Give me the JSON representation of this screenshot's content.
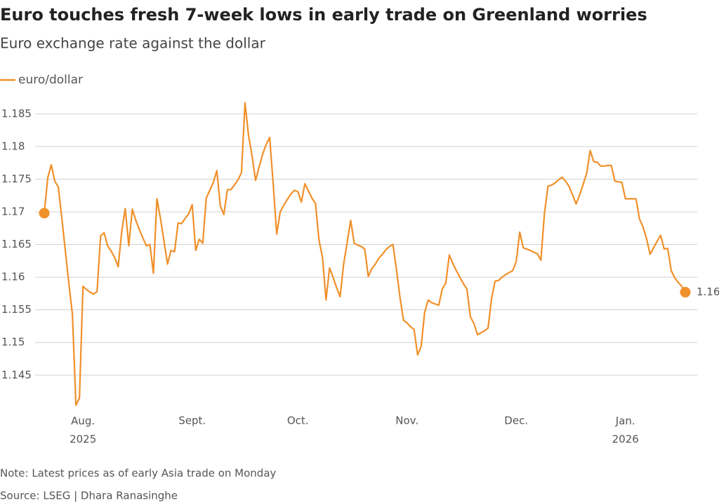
{
  "chart_data": {
    "type": "line",
    "title": "Euro touches fresh 7-week lows in early trade on Greenland worries",
    "subtitle": "Euro exchange rate against the dollar",
    "note": "Note: Latest prices as of early Asia trade on Monday",
    "source": "Source: LSEG | Dhara Ranasinghe",
    "grid": true,
    "ylim": [
      1.1395,
      1.1875
    ],
    "yticks": [
      1.145,
      1.15,
      1.155,
      1.16,
      1.165,
      1.17,
      1.175,
      1.18,
      1.185
    ],
    "categories": [
      null,
      null,
      null,
      null,
      null,
      null,
      null,
      null,
      null,
      null,
      null,
      "Aug.\n2025",
      null,
      null,
      null,
      null,
      null,
      null,
      null,
      null,
      null,
      null,
      null,
      null,
      null,
      null,
      null,
      null,
      null,
      null,
      null,
      null,
      null,
      null,
      null,
      null,
      null,
      null,
      null,
      null,
      null,
      null,
      "Sept.",
      null,
      null,
      null,
      null,
      null,
      null,
      null,
      null,
      null,
      null,
      null,
      null,
      null,
      null,
      null,
      null,
      null,
      null,
      null,
      null,
      null,
      null,
      null,
      null,
      null,
      null,
      null,
      null,
      null,
      "Oct.",
      null,
      null,
      null,
      null,
      null,
      null,
      null,
      null,
      null,
      null,
      null,
      null,
      null,
      null,
      null,
      null,
      null,
      null,
      null,
      null,
      null,
      null,
      null,
      null,
      null,
      null,
      null,
      null,
      null,
      null,
      "Nov.",
      null,
      null,
      null,
      null,
      null,
      null,
      null,
      null,
      null,
      null,
      null,
      null,
      null,
      null,
      null,
      null,
      null,
      null,
      null,
      null,
      null,
      null,
      null,
      null,
      null,
      null,
      null,
      null,
      null,
      null,
      "Dec.",
      null,
      null,
      null,
      null,
      null,
      null,
      null,
      null,
      null,
      null,
      null,
      null,
      null,
      null,
      null,
      null,
      null,
      null,
      null,
      null,
      null,
      null,
      null,
      null,
      null,
      null,
      null,
      null,
      null,
      null,
      "Jan.\n2026",
      null,
      null,
      null,
      null,
      null,
      null,
      null,
      null,
      null,
      null,
      null,
      null,
      null,
      null,
      null,
      null,
      null
    ],
    "series": [
      {
        "name": "euro/dollar",
        "color": "#f0902a",
        "values": [
          1.1698,
          1.1752,
          1.1772,
          1.1747,
          1.1738,
          1.169,
          1.164,
          1.159,
          1.1543,
          1.1404,
          1.1415,
          1.1586,
          1.1581,
          1.1577,
          1.1574,
          1.1578,
          1.1663,
          1.1668,
          1.1648,
          1.164,
          1.163,
          1.1616,
          1.167,
          1.1705,
          1.1648,
          1.1704,
          1.1687,
          1.1673,
          1.166,
          1.1648,
          1.165,
          1.1606,
          1.172,
          1.169,
          1.1655,
          1.162,
          1.1641,
          1.1639,
          1.1683,
          1.1682,
          1.169,
          1.1697,
          1.1711,
          1.1641,
          1.1658,
          1.1652,
          1.1721,
          1.1733,
          1.1745,
          1.1763,
          1.1709,
          1.1696,
          1.1734,
          1.1734,
          1.1741,
          1.1749,
          1.176,
          1.1867,
          1.1817,
          1.1786,
          1.1748,
          1.1769,
          1.1788,
          1.1803,
          1.1814,
          1.1743,
          1.1666,
          1.17,
          1.171,
          1.1719,
          1.1727,
          1.1733,
          1.1731,
          1.1715,
          1.1743,
          1.1732,
          1.1721,
          1.1713,
          1.1657,
          1.163,
          1.1565,
          1.1614,
          1.16,
          1.1584,
          1.157,
          1.162,
          1.1653,
          1.1687,
          1.1652,
          1.1649,
          1.1647,
          1.1643,
          1.1601,
          1.1613,
          1.162,
          1.1629,
          1.1635,
          1.1642,
          1.1647,
          1.165,
          1.1612,
          1.1569,
          1.1534,
          1.153,
          1.1524,
          1.152,
          1.1481,
          1.1494,
          1.1546,
          1.1565,
          1.1561,
          1.1559,
          1.1557,
          1.1582,
          1.1591,
          1.1634,
          1.1621,
          1.161,
          1.16,
          1.159,
          1.1582,
          1.1539,
          1.1529,
          1.1512,
          1.1515,
          1.1518,
          1.1522,
          1.1567,
          1.1594,
          1.1595,
          1.16,
          1.1604,
          1.1607,
          1.161,
          1.1624,
          1.1669,
          1.1645,
          1.1643,
          1.1641,
          1.1638,
          1.1636,
          1.1626,
          1.1697,
          1.1739,
          1.1741,
          1.1744,
          1.1749,
          1.1753,
          1.1747,
          1.1739,
          1.1726,
          1.1712,
          1.1726,
          1.1742,
          1.1759,
          1.1794,
          1.1777,
          1.1776,
          1.177,
          1.177,
          1.1771,
          1.1771,
          1.1747,
          1.1746,
          1.1745,
          1.172,
          1.172,
          1.172,
          1.172,
          1.1689,
          1.1677,
          1.1659,
          1.1635,
          1.1645,
          1.1655,
          1.1664,
          1.1643,
          1.1644,
          1.161,
          1.1599,
          1.1592,
          1.1586,
          1.1577
        ],
        "value_labels": [
          null,
          null,
          null,
          null,
          null,
          null,
          null,
          null,
          null,
          null,
          null,
          null,
          null,
          null,
          null,
          null,
          null,
          null,
          null,
          null,
          null,
          null,
          null,
          null,
          null,
          null,
          null,
          null,
          null,
          null,
          null,
          null,
          null,
          null,
          null,
          null,
          null,
          null,
          null,
          null,
          null,
          null,
          null,
          null,
          null,
          null,
          null,
          null,
          null,
          null,
          null,
          null,
          null,
          null,
          null,
          null,
          null,
          null,
          null,
          null,
          null,
          null,
          null,
          null,
          null,
          null,
          null,
          null,
          null,
          null,
          null,
          null,
          null,
          null,
          null,
          null,
          null,
          null,
          null,
          null,
          null,
          null,
          null,
          null,
          null,
          null,
          null,
          null,
          null,
          null,
          null,
          null,
          null,
          null,
          null,
          null,
          null,
          null,
          null,
          null,
          null,
          null,
          null,
          null,
          null,
          null,
          null,
          null,
          null,
          null,
          null,
          null,
          null,
          null,
          null,
          null,
          null,
          null,
          null,
          null,
          null,
          null,
          null,
          null,
          null,
          null,
          null,
          null,
          null,
          null,
          null,
          null,
          null,
          null,
          null,
          null,
          null,
          null,
          null,
          null,
          null,
          null,
          null,
          null,
          null,
          null,
          null,
          null,
          null,
          null,
          null,
          null,
          null,
          null,
          null,
          null,
          null,
          null,
          null,
          null,
          null,
          null,
          null,
          null,
          null,
          null,
          null,
          null,
          null,
          null,
          null,
          null,
          null,
          null,
          null,
          null,
          null,
          null,
          null,
          null,
          null,
          null,
          "1.16"
        ]
      }
    ]
  }
}
